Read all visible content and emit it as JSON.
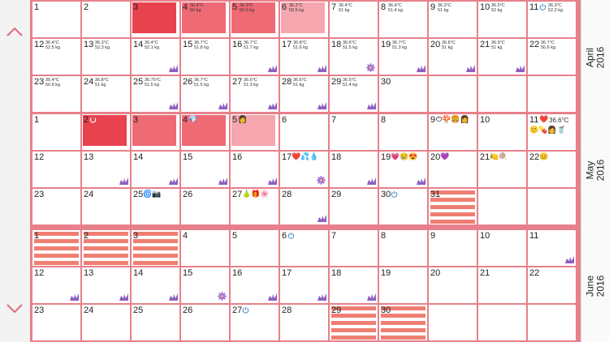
{
  "nav": {
    "prev_icon": "chevron-up-icon",
    "next_icon": "chevron-down-icon"
  },
  "colors": {
    "grid": "#e7808b",
    "period_dark": "#e8424f",
    "period_mid": "#ee6a75",
    "period_light": "#f6a6ae",
    "predicted_stripe": "#ef7f73",
    "tick_purple": "#8e5fc2"
  },
  "months": [
    {
      "label": "April\n2016",
      "rows": [
        [
          {
            "d": "1"
          },
          {
            "d": "2"
          },
          {
            "d": "3",
            "fill": "dark"
          },
          {
            "d": "4",
            "t": "36.4°C",
            "w": "50 kg",
            "fill": "mid"
          },
          {
            "d": "5",
            "t": "36.3°C",
            "w": "50.5 kg",
            "fill": "mid"
          },
          {
            "d": "6",
            "t": "36.2°C",
            "w": "50.5 kg",
            "fill": "light"
          },
          {
            "d": "7",
            "t": "36.4°C",
            "w": "51 kg"
          },
          {
            "d": "8",
            "t": "36.4°C",
            "w": "51.4 kg"
          },
          {
            "d": "9",
            "t": "36.3°C",
            "w": "51 kg"
          },
          {
            "d": "10",
            "t": "36.5°C",
            "w": "52 kg"
          },
          {
            "d": "11",
            "t": "36.3°C",
            "w": "52.2 kg",
            "icon": "power-icon"
          }
        ],
        [
          {
            "d": "12",
            "t": "36.4°C",
            "w": "52.5 kg"
          },
          {
            "d": "13",
            "t": "36.3°C",
            "w": "52.3 kg"
          },
          {
            "d": "14",
            "t": "36.4°C",
            "w": "52.1 kg",
            "tick": true
          },
          {
            "d": "15",
            "t": "36.7°C",
            "w": "51.8 kg"
          },
          {
            "d": "16",
            "t": "36.7°C",
            "w": "51.7 kg",
            "tick": true
          },
          {
            "d": "17",
            "t": "36.8°C",
            "w": "51.6 kg",
            "tick": true
          },
          {
            "d": "18",
            "t": "36.6°C",
            "w": "51.5 kg",
            "flower": true
          },
          {
            "d": "19",
            "t": "36.7°C",
            "w": "51.3 kg",
            "tick": true
          },
          {
            "d": "20",
            "t": "36.8°C",
            "w": "51 kg",
            "tick": true
          },
          {
            "d": "21",
            "t": "36.9°C",
            "w": "51 kg",
            "tick": true
          },
          {
            "d": "22",
            "t": "36.7°C",
            "w": "50.6 kg"
          }
        ],
        [
          {
            "d": "23",
            "t": "36.4°C",
            "w": "50.8 kg"
          },
          {
            "d": "24",
            "t": "36.8°C",
            "w": "51 kg"
          },
          {
            "d": "25",
            "t": "36.75°C",
            "w": "51.5 kg",
            "tick": true
          },
          {
            "d": "26",
            "t": "36.7°C",
            "w": "51.5 kg",
            "tick": true
          },
          {
            "d": "27",
            "t": "36.6°C",
            "w": "51.3 kg",
            "tick": true
          },
          {
            "d": "28",
            "t": "36.6°C",
            "w": "51 kg",
            "tick": true
          },
          {
            "d": "29",
            "t": "36.5°C",
            "w": "51.4 kg",
            "tick": true
          },
          {
            "d": "30"
          },
          {
            "d": ""
          },
          {
            "d": ""
          },
          {
            "d": ""
          }
        ]
      ]
    },
    {
      "label": "May\n2016",
      "rows": [
        [
          {
            "d": "1"
          },
          {
            "d": "2",
            "fill": "dark",
            "icon": "ring-icon"
          },
          {
            "d": "3",
            "fill": "mid"
          },
          {
            "d": "4",
            "fill": "mid",
            "emoji": "💎"
          },
          {
            "d": "5",
            "fill": "light",
            "emoji": "👩"
          },
          {
            "d": "6"
          },
          {
            "d": "7"
          },
          {
            "d": "8"
          },
          {
            "d": "9",
            "emoji": "⏻🍄🍔👩"
          },
          {
            "d": "10"
          },
          {
            "d": "11",
            "emoji": "❤️",
            "t": "36.6°C",
            "emoji2": "🙂💊👩🥤"
          }
        ],
        [
          {
            "d": "12"
          },
          {
            "d": "13",
            "tick": true
          },
          {
            "d": "14",
            "tick": true
          },
          {
            "d": "15",
            "tick": true
          },
          {
            "d": "16",
            "tick": true
          },
          {
            "d": "17",
            "emoji": "❤️💦💧",
            "flower": true
          },
          {
            "d": "18",
            "tick": true
          },
          {
            "d": "19",
            "emoji": "💗😢😍",
            "tick": true
          },
          {
            "d": "20",
            "emoji": "💜"
          },
          {
            "d": "21",
            "emoji": "🍋🍭"
          },
          {
            "d": "22",
            "emoji": "😊"
          }
        ],
        [
          {
            "d": "23"
          },
          {
            "d": "24"
          },
          {
            "d": "25",
            "emoji": "🌀📷"
          },
          {
            "d": "26"
          },
          {
            "d": "27",
            "emoji": "🍐🎁🌸"
          },
          {
            "d": "28",
            "tick": true
          },
          {
            "d": "29"
          },
          {
            "d": "30",
            "icon": "power-icon"
          },
          {
            "d": "31",
            "stripe": true
          },
          {
            "d": ""
          },
          {
            "d": ""
          }
        ]
      ]
    },
    {
      "label": "June\n2016",
      "rows": [
        [
          {
            "d": "1",
            "stripe": true
          },
          {
            "d": "2",
            "stripe": true
          },
          {
            "d": "3",
            "stripe": true
          },
          {
            "d": "4"
          },
          {
            "d": "5"
          },
          {
            "d": "6",
            "icon": "power-icon"
          },
          {
            "d": "7"
          },
          {
            "d": "8"
          },
          {
            "d": "9"
          },
          {
            "d": "10"
          },
          {
            "d": "11",
            "tick": true
          }
        ],
        [
          {
            "d": "12",
            "tick": true
          },
          {
            "d": "13",
            "tick": true
          },
          {
            "d": "14",
            "tick": true
          },
          {
            "d": "15",
            "flower": true
          },
          {
            "d": "16",
            "tick": true
          },
          {
            "d": "17",
            "tick": true
          },
          {
            "d": "18",
            "tick": true
          },
          {
            "d": "19"
          },
          {
            "d": "20"
          },
          {
            "d": "21"
          },
          {
            "d": "22"
          }
        ],
        [
          {
            "d": "23"
          },
          {
            "d": "24"
          },
          {
            "d": "25"
          },
          {
            "d": "26"
          },
          {
            "d": "27",
            "icon": "power-icon"
          },
          {
            "d": "28"
          },
          {
            "d": "29",
            "stripe": true
          },
          {
            "d": "30",
            "stripe": true
          },
          {
            "d": ""
          },
          {
            "d": ""
          },
          {
            "d": ""
          }
        ]
      ]
    }
  ]
}
